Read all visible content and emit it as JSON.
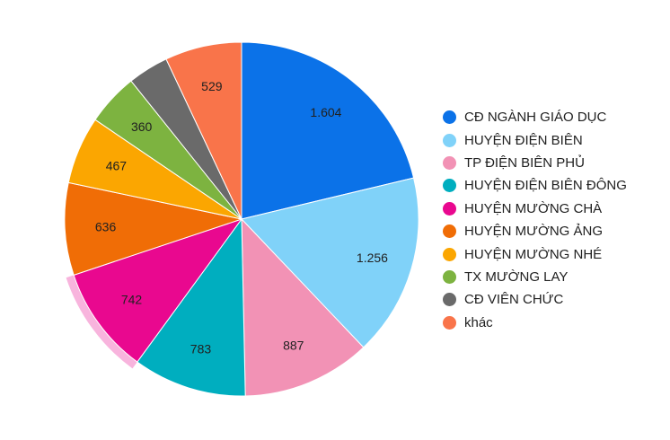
{
  "chart_data": {
    "type": "pie",
    "title": "",
    "categories": [
      "CĐ NGÀNH GIÁO DỤC",
      "HUYỆN ĐIỆN BIÊN",
      "TP ĐIỆN BIÊN PHỦ",
      "HUYỆN ĐIỆN BIÊN ĐÔNG",
      "HUYỆN MƯỜNG CHÀ",
      "HUYỆN MƯỜNG ẢNG",
      "HUYỆN MƯỜNG NHÉ",
      "TX MƯỜNG LAY",
      "CĐ VIÊN CHỨC",
      "khác"
    ],
    "values": [
      1604,
      1256,
      887,
      783,
      742,
      636,
      467,
      360,
      281,
      529
    ],
    "value_labels": [
      "1.604",
      "1.256",
      "887",
      "783",
      "742",
      "636",
      "467",
      "360",
      "",
      "529"
    ],
    "colors": [
      "#0b72e8",
      "#80d2f9",
      "#f292b5",
      "#00aebf",
      "#e9088f",
      "#f06d06",
      "#fba601",
      "#7db340",
      "#6a6a6a",
      "#f9744a"
    ],
    "highlighted": "HUYỆN MƯỜNG CHÀ",
    "legend_position": "right"
  }
}
